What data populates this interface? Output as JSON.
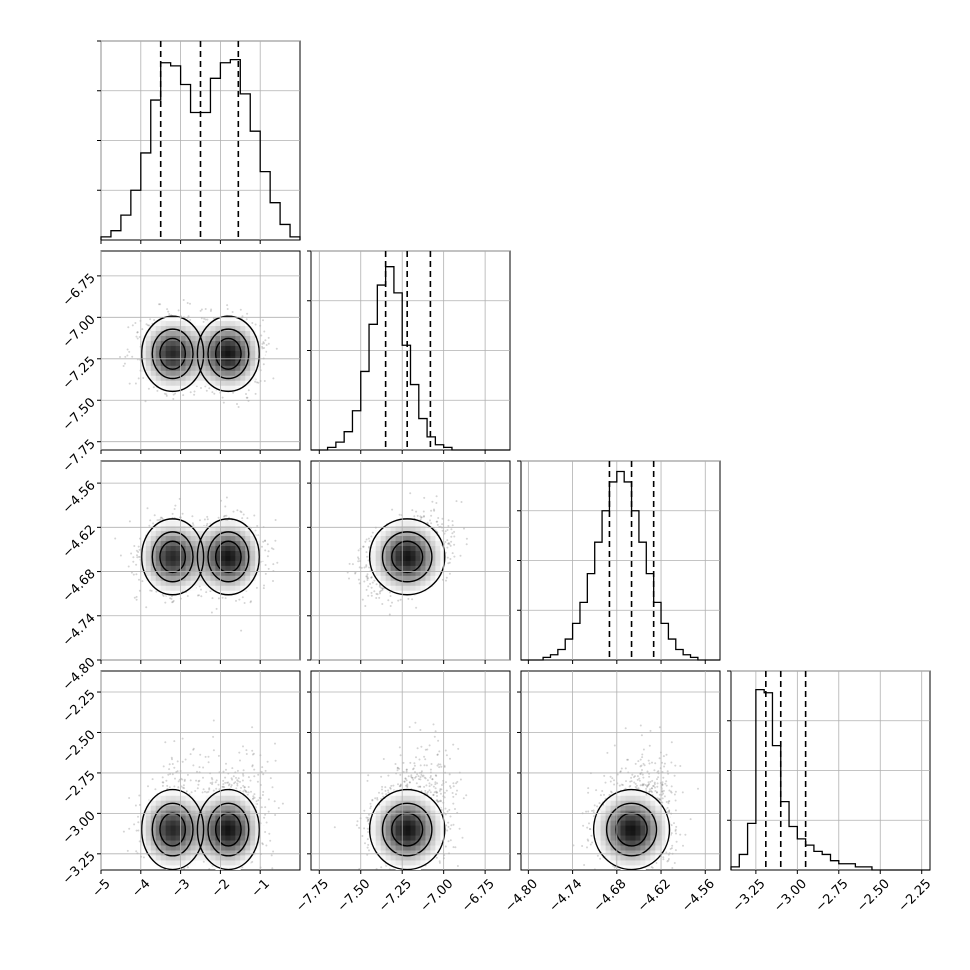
{
  "chart_data": {
    "type": "corner",
    "grid": true,
    "quantile_lines": "dashed",
    "params": [
      {
        "index": 0,
        "hist": {
          "bins": [
            -5.0,
            -4.75,
            -4.5,
            -4.25,
            -4.0,
            -3.75,
            -3.5,
            -3.25,
            -3.0,
            -2.75,
            -2.5,
            -2.25,
            -2.0,
            -1.75,
            -1.5,
            -1.25,
            -1.0,
            -0.75,
            -0.5,
            -0.25,
            0.0
          ],
          "counts": [
            1,
            3,
            8,
            16,
            28,
            45,
            57,
            56,
            50,
            41,
            41,
            52,
            57,
            58,
            47,
            35,
            22,
            12,
            5,
            1
          ],
          "ymax": 64,
          "yticks": [
            16,
            32,
            48,
            64
          ],
          "xlim": [
            -5.0,
            0.0
          ],
          "quantiles": [
            -3.5,
            -2.5,
            -1.55
          ]
        },
        "xticks": [
          -5,
          -4,
          -3,
          -2,
          -1
        ],
        "xtick_labels": [
          "−5",
          "−4",
          "−3",
          "−2",
          "−1"
        ],
        "modes": [
          {
            "mean": -3.2,
            "sd": 0.42,
            "w": 0.48
          },
          {
            "mean": -1.8,
            "sd": 0.42,
            "w": 0.52
          }
        ]
      },
      {
        "index": 1,
        "hist": {
          "bins": [
            -7.8,
            -7.75,
            -7.7,
            -7.65,
            -7.6,
            -7.55,
            -7.5,
            -7.45,
            -7.4,
            -7.35,
            -7.3,
            -7.25,
            -7.2,
            -7.15,
            -7.1,
            -7.05,
            -7.0,
            -6.95,
            -6.9,
            -6.85,
            -6.8,
            -6.75,
            -6.7,
            -6.65,
            -6.6
          ],
          "counts": [
            0,
            0,
            1,
            3,
            7,
            15,
            30,
            48,
            63,
            70,
            60,
            40,
            25,
            12,
            5,
            2,
            1,
            0,
            0,
            0,
            0,
            0,
            0,
            0
          ],
          "ymax": 76,
          "yticks": [
            19,
            38,
            57,
            76
          ],
          "xlim": [
            -7.8,
            -6.6
          ],
          "quantiles": [
            -7.35,
            -7.22,
            -7.08
          ]
        },
        "ylim": [
          -7.8,
          -6.6
        ],
        "yticks": [
          -7.75,
          -7.5,
          -7.25,
          -7.0,
          -6.75
        ],
        "ytick_labels": [
          "−7.75",
          "−7.50",
          "−7.25",
          "−7.00",
          "−6.75"
        ],
        "xticks": [
          -7.75,
          -7.5,
          -7.25,
          -7.0,
          -6.75
        ],
        "xtick_labels": [
          "−7.75",
          "−7.50",
          "−7.25",
          "−7.00",
          "−6.75"
        ],
        "mean": -7.22,
        "sd": 0.11
      },
      {
        "index": 2,
        "hist": {
          "bins": [
            -4.81,
            -4.8,
            -4.79,
            -4.78,
            -4.77,
            -4.76,
            -4.75,
            -4.74,
            -4.73,
            -4.72,
            -4.71,
            -4.7,
            -4.69,
            -4.68,
            -4.67,
            -4.66,
            -4.65,
            -4.64,
            -4.63,
            -4.62,
            -4.61,
            -4.6,
            -4.59,
            -4.58,
            -4.57,
            -4.56,
            -4.55,
            -4.54
          ],
          "counts": [
            0,
            0,
            0,
            1,
            2,
            4,
            8,
            14,
            22,
            33,
            45,
            57,
            68,
            72,
            68,
            57,
            45,
            33,
            22,
            14,
            8,
            4,
            2,
            1,
            0,
            0,
            0
          ],
          "ymax": 76,
          "yticks": [
            19,
            38,
            57,
            76
          ],
          "xlim": [
            -4.81,
            -4.54
          ],
          "quantiles": [
            -4.69,
            -4.66,
            -4.63
          ]
        },
        "ylim": [
          -4.8,
          -4.53
        ],
        "yticks": [
          -4.8,
          -4.74,
          -4.68,
          -4.62,
          -4.56
        ],
        "ytick_labels": [
          "−4.80",
          "−4.74",
          "−4.68",
          "−4.62",
          "−4.56"
        ],
        "xticks": [
          -4.8,
          -4.74,
          -4.68,
          -4.62,
          -4.56
        ],
        "xtick_labels": [
          "−4.80",
          "−4.74",
          "−4.68",
          "−4.62",
          "−4.56"
        ],
        "mean": -4.66,
        "sd": 0.025
      },
      {
        "index": 3,
        "hist": {
          "bins": [
            -3.4,
            -3.35,
            -3.3,
            -3.25,
            -3.2,
            -3.15,
            -3.1,
            -3.05,
            -3.0,
            -2.95,
            -2.9,
            -2.85,
            -2.8,
            -2.75,
            -2.7,
            -2.65,
            -2.6,
            -2.55,
            -2.5,
            -2.45,
            -2.4,
            -2.35,
            -2.3,
            -2.25,
            -2.2
          ],
          "counts": [
            1,
            5,
            15,
            58,
            57,
            40,
            22,
            14,
            10,
            8,
            6,
            5,
            3,
            2,
            2,
            1,
            1,
            0,
            0,
            0,
            0,
            0,
            0,
            0
          ],
          "ymax": 64,
          "yticks": [
            16,
            32,
            48,
            64
          ],
          "xlim": [
            -3.4,
            -2.2
          ],
          "quantiles": [
            -3.19,
            -3.1,
            -2.95
          ]
        },
        "ylim": [
          -3.35,
          -2.12
        ],
        "yticks": [
          -3.25,
          -3.0,
          -2.75,
          -2.5,
          -2.25
        ],
        "ytick_labels": [
          "−3.25",
          "−3.00",
          "−2.75",
          "−2.50",
          "−2.25"
        ],
        "xticks": [
          -3.25,
          -3.0,
          -2.75,
          -2.5,
          -2.25
        ],
        "xtick_labels": [
          "−3.25",
          "−3.00",
          "−2.75",
          "−2.50",
          "−2.25"
        ],
        "mean": -3.1,
        "sd": 0.12
      }
    ]
  },
  "colors": {
    "axes": "#000000",
    "grid": "#b0b0b0",
    "points": "#555555",
    "density": "#000000"
  }
}
